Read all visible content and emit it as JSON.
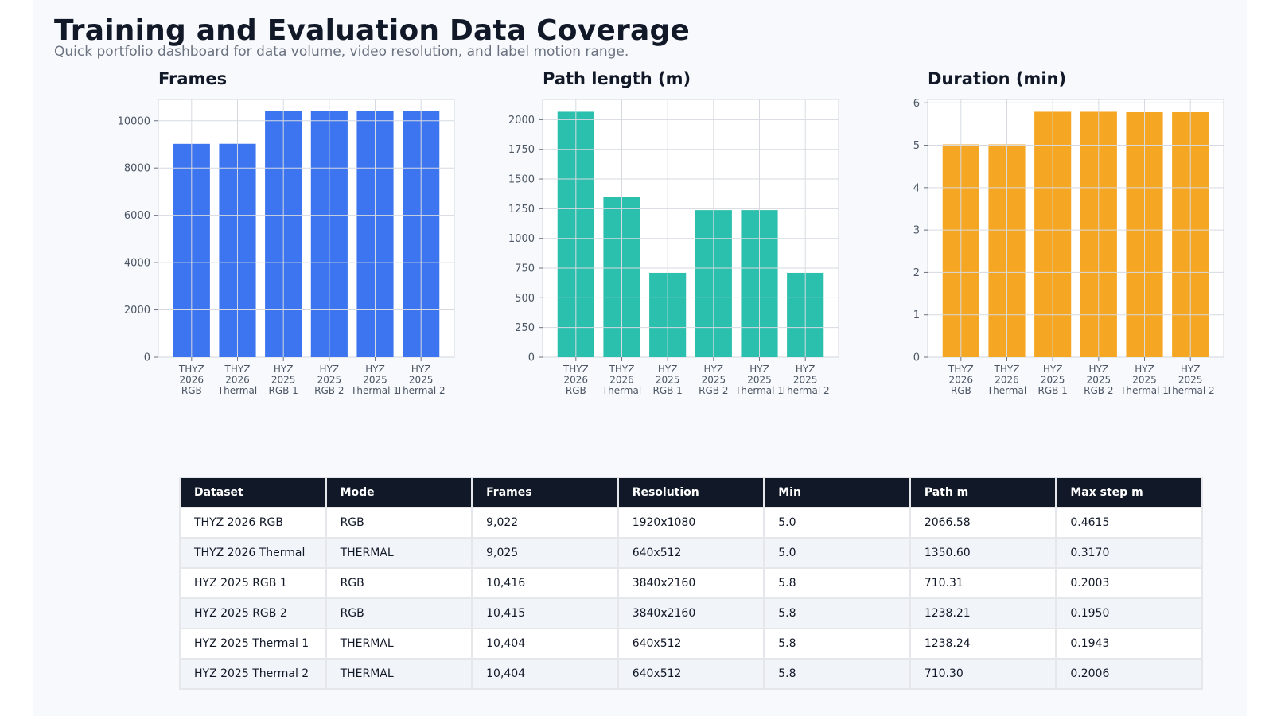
{
  "header": {
    "title": "Training and Evaluation Data Coverage",
    "subtitle": "Quick portfolio dashboard for data volume, video resolution, and label motion range."
  },
  "chart_data": [
    {
      "type": "bar",
      "title": "Frames",
      "categories": [
        "THYZ\n2026\nRGB",
        "THYZ\n2026\nThermal",
        "HYZ\n2025\nRGB 1",
        "HYZ\n2025\nRGB 2",
        "HYZ\n2025\nThermal 1",
        "HYZ\n2025\nThermal 2"
      ],
      "values": [
        9022,
        9025,
        10416,
        10415,
        10404,
        10404
      ],
      "ylim": [
        0,
        10900
      ],
      "yticks": [
        0,
        2000,
        4000,
        6000,
        8000,
        10000
      ],
      "ytick_labels": [
        "0",
        "2000",
        "4000",
        "6000",
        "8000",
        "10000"
      ],
      "color": "#3d74ef",
      "grid": true
    },
    {
      "type": "bar",
      "title": "Path length (m)",
      "categories": [
        "THYZ\n2026\nRGB",
        "THYZ\n2026\nThermal",
        "HYZ\n2025\nRGB 1",
        "HYZ\n2025\nRGB 2",
        "HYZ\n2025\nThermal 1",
        "HYZ\n2025\nThermal 2"
      ],
      "values": [
        2066.58,
        1350.6,
        710.31,
        1238.21,
        1238.24,
        710.3
      ],
      "ylim": [
        0,
        2170
      ],
      "yticks": [
        0,
        250,
        500,
        750,
        1000,
        1250,
        1500,
        1750,
        2000
      ],
      "ytick_labels": [
        "0",
        "250",
        "500",
        "750",
        "1000",
        "1250",
        "1500",
        "1750",
        "2000"
      ],
      "color": "#2bbfad",
      "grid": true
    },
    {
      "type": "bar",
      "title": "Duration (min)",
      "categories": [
        "THYZ\n2026\nRGB",
        "THYZ\n2026\nThermal",
        "HYZ\n2025\nRGB 1",
        "HYZ\n2025\nRGB 2",
        "HYZ\n2025\nThermal 1",
        "HYZ\n2025\nThermal 2"
      ],
      "values": [
        5.02,
        5.02,
        5.79,
        5.79,
        5.78,
        5.78
      ],
      "ylim": [
        0,
        6.08
      ],
      "yticks": [
        0,
        1,
        2,
        3,
        4,
        5,
        6
      ],
      "ytick_labels": [
        "0",
        "1",
        "2",
        "3",
        "4",
        "5",
        "6"
      ],
      "color": "#f5a623",
      "grid": true
    }
  ],
  "table": {
    "columns": [
      "Dataset",
      "Mode",
      "Frames",
      "Resolution",
      "Min",
      "Path m",
      "Max step m"
    ],
    "rows": [
      [
        "THYZ 2026 RGB",
        "RGB",
        "9,022",
        "1920x1080",
        "5.0",
        "2066.58",
        "0.4615"
      ],
      [
        "THYZ 2026 Thermal",
        "THERMAL",
        "9,025",
        "640x512",
        "5.0",
        "1350.60",
        "0.3170"
      ],
      [
        "HYZ 2025 RGB 1",
        "RGB",
        "10,416",
        "3840x2160",
        "5.8",
        "710.31",
        "0.2003"
      ],
      [
        "HYZ 2025 RGB 2",
        "RGB",
        "10,415",
        "3840x2160",
        "5.8",
        "1238.21",
        "0.1950"
      ],
      [
        "HYZ 2025 Thermal 1",
        "THERMAL",
        "10,404",
        "640x512",
        "5.8",
        "1238.24",
        "0.1943"
      ],
      [
        "HYZ 2025 Thermal 2",
        "THERMAL",
        "10,404",
        "640x512",
        "5.8",
        "710.30",
        "0.2006"
      ]
    ]
  }
}
